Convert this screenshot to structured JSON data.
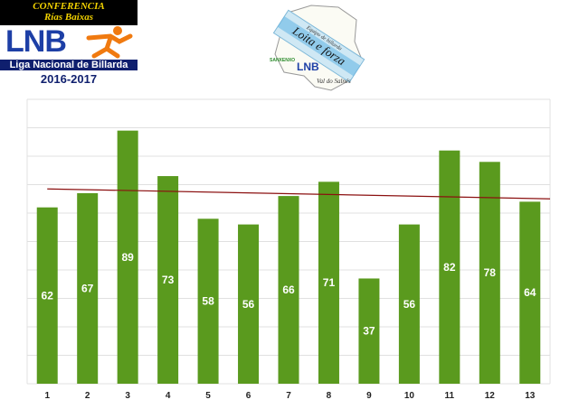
{
  "header": {
    "conference_line1": "CONFERENCIA",
    "conference_line2": "Rías Baixas",
    "league_short": "LNB",
    "league_name": "Liga Nacional de Billarda",
    "season": "2016-2017"
  },
  "team_logo": {
    "line1": "Equipo de billarda",
    "line2": "Loita e forza",
    "line3": "Val do Salnés",
    "badge": "LNB",
    "small_text": "SANXENXO"
  },
  "colors": {
    "bar": "#5a9a1e",
    "trend": "#8b1010",
    "grid": "#e0e0e0",
    "plot_bg": "#ffffff"
  },
  "chart_data": {
    "type": "bar",
    "categories": [
      "1",
      "2",
      "3",
      "4",
      "5",
      "6",
      "7",
      "8",
      "9",
      "10",
      "11",
      "12",
      "13"
    ],
    "values": [
      62,
      67,
      89,
      73,
      58,
      56,
      66,
      71,
      37,
      56,
      82,
      78,
      64
    ],
    "ylim": [
      0,
      100
    ],
    "grid": true,
    "trendline": {
      "start": 68.5,
      "end": 65.0
    },
    "title": "",
    "xlabel": "",
    "ylabel": ""
  }
}
